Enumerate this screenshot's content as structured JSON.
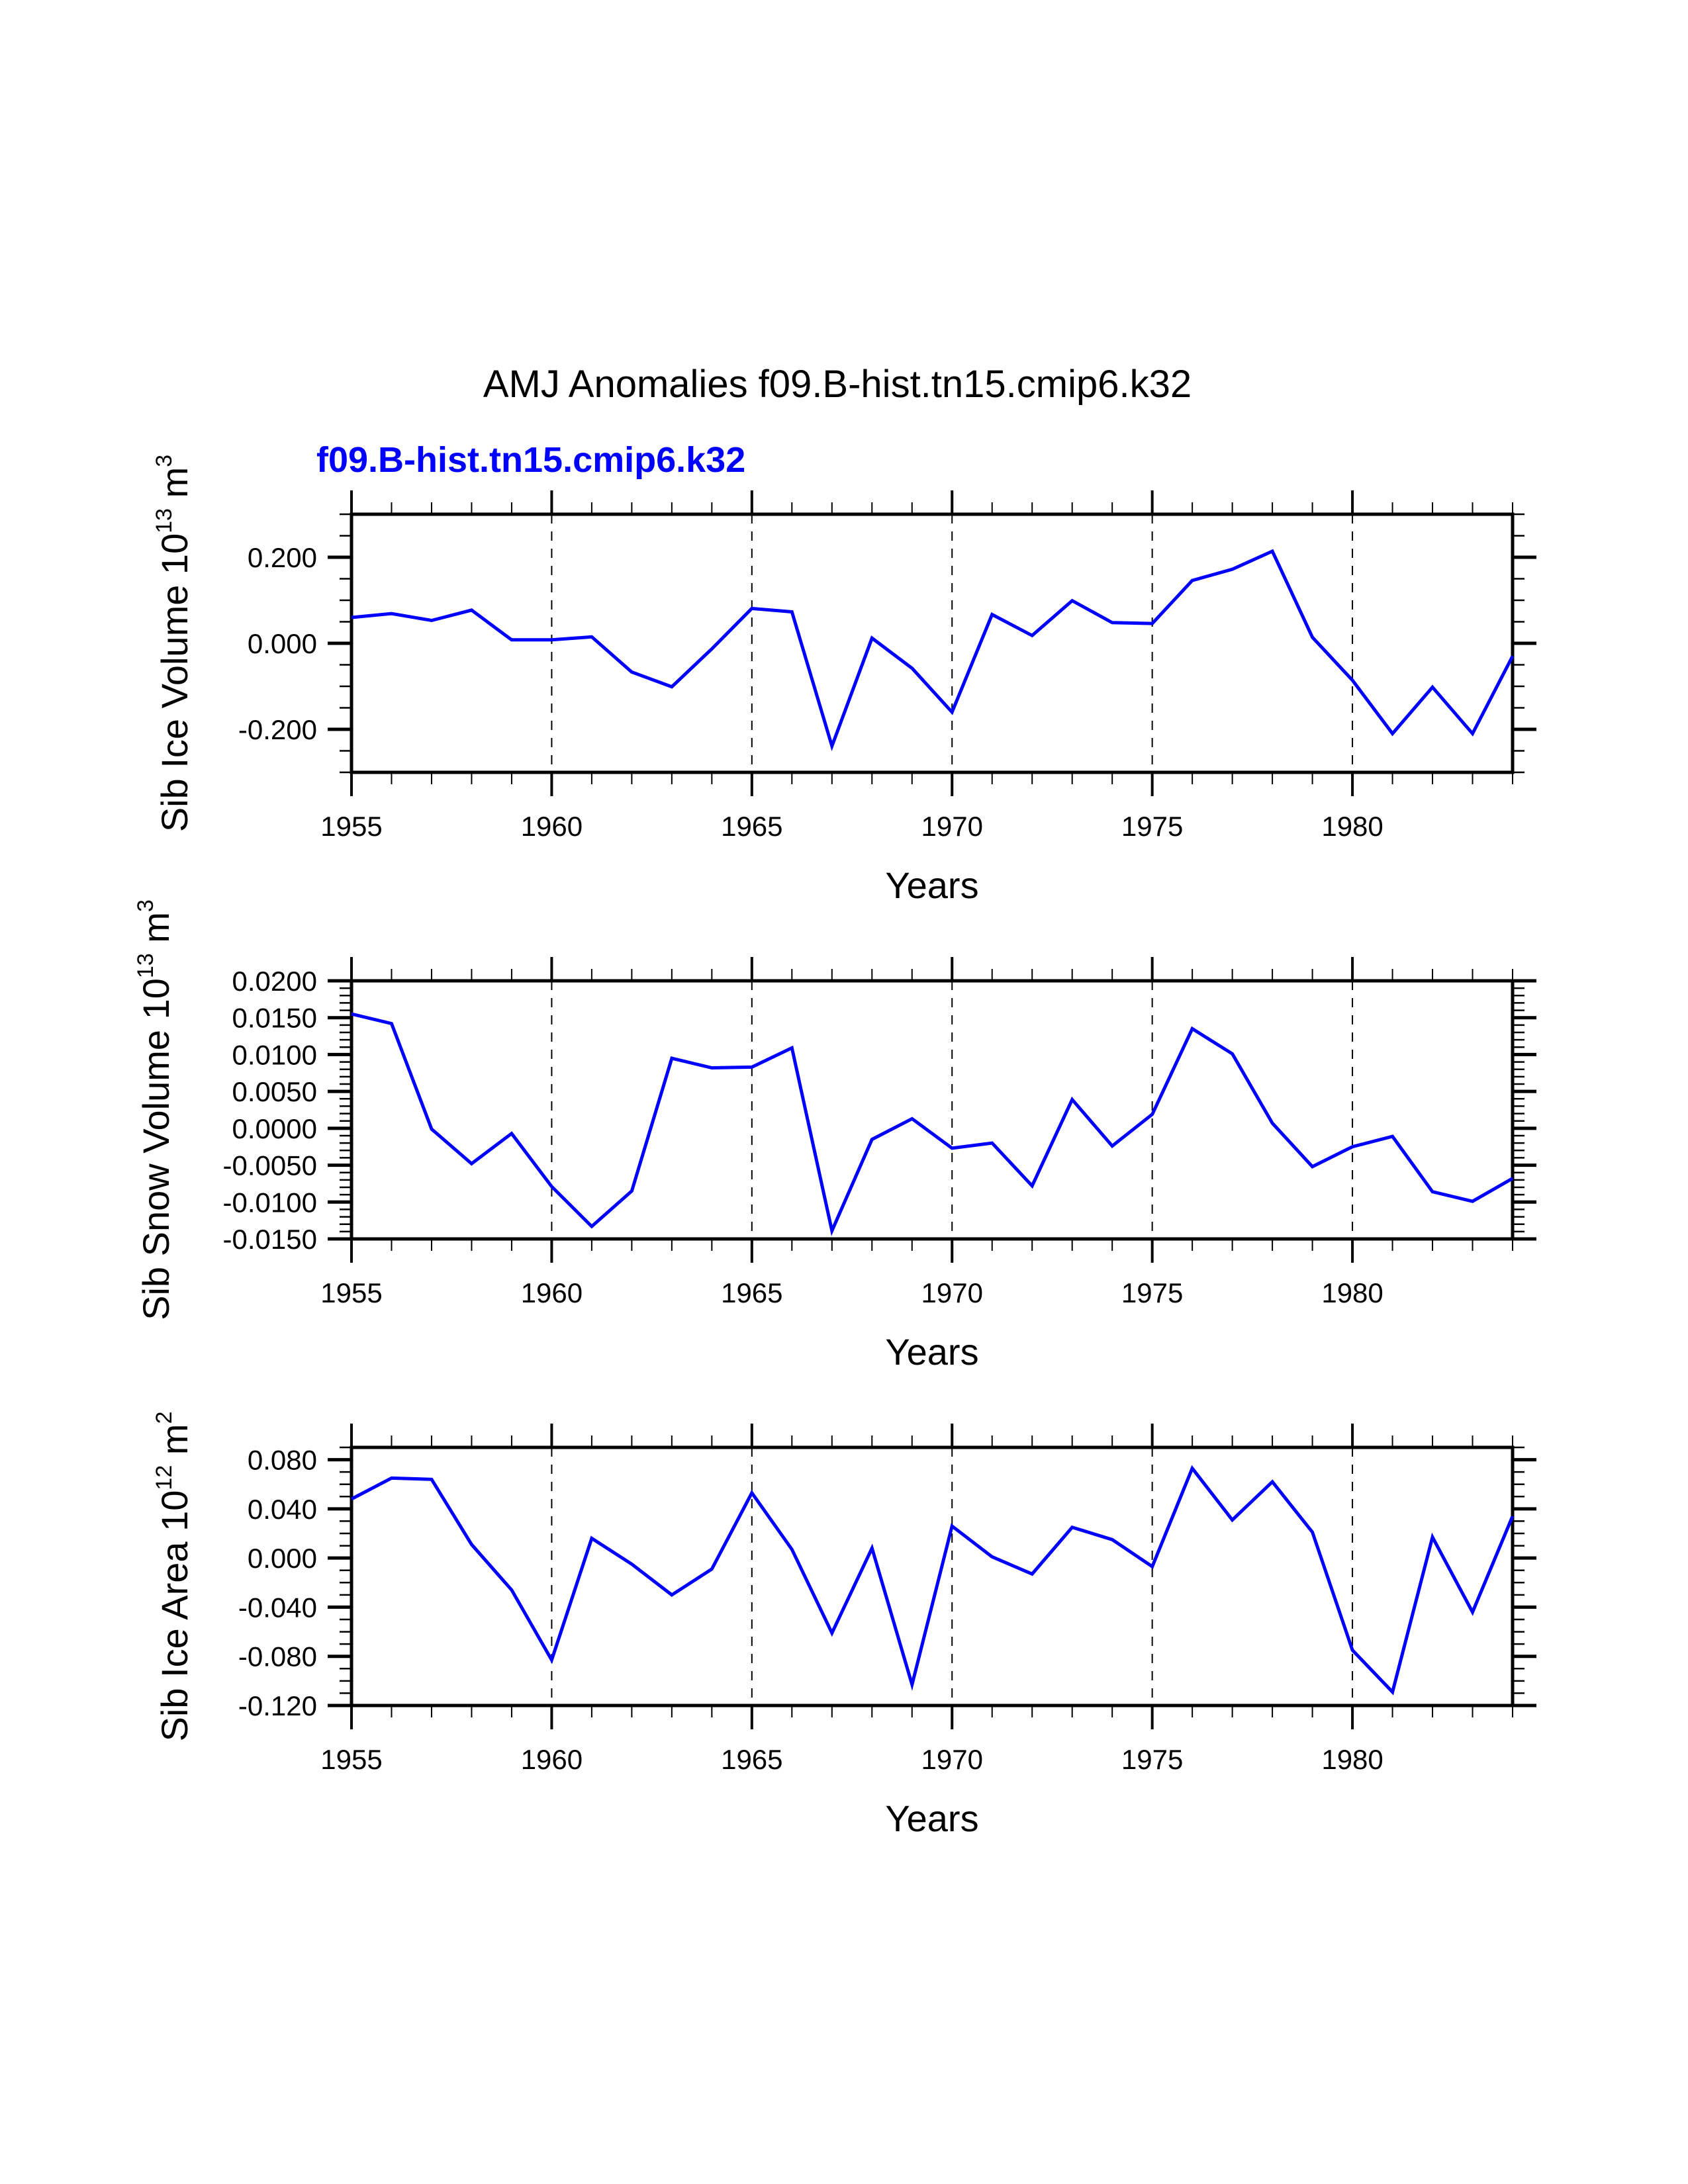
{
  "chart_data": {
    "title": "AMJ Anomalies f09.B-hist.tn15.cmip6.k32",
    "subtitle": "f09.B-hist.tn15.cmip6.k32",
    "series_color": "#0000ff",
    "grid_line_color": "#000000",
    "panels": [
      {
        "type": "line",
        "ylabel": {
          "text": "Sib Ice Volume 10",
          "exponent": "13",
          "unit": "m",
          "unit_exponent": "3"
        },
        "xlabel": "Years",
        "x": [
          1955,
          1956,
          1957,
          1958,
          1959,
          1960,
          1961,
          1962,
          1963,
          1964,
          1965,
          1966,
          1967,
          1968,
          1969,
          1970,
          1971,
          1972,
          1973,
          1974,
          1975,
          1976,
          1977,
          1978,
          1979,
          1980,
          1981,
          1982,
          1983,
          1984
        ],
        "series": [
          {
            "name": "f09.B-hist.tn15.cmip6.k32",
            "values": [
              0.06,
              0.069,
              0.053,
              0.077,
              0.008,
              0.008,
              0.015,
              -0.067,
              -0.101,
              -0.013,
              0.081,
              0.073,
              -0.239,
              0.012,
              -0.058,
              -0.16,
              0.067,
              0.018,
              0.099,
              0.048,
              0.046,
              0.146,
              0.172,
              0.214,
              0.014,
              -0.086,
              -0.21,
              -0.102,
              -0.21,
              -0.03
            ]
          }
        ],
        "xlim": [
          1955,
          1984
        ],
        "ylim": [
          -0.3,
          0.3
        ],
        "x_ticks": [
          1955,
          1960,
          1965,
          1970,
          1975,
          1980
        ],
        "x_tick_labels": [
          "1955",
          "1960",
          "1965",
          "1970",
          "1975",
          "1980"
        ],
        "x_minor_step": 1,
        "y_ticks": [
          0.2,
          0.0,
          -0.2
        ],
        "y_tick_labels": [
          "0.200",
          "0.000",
          "-0.200"
        ],
        "y_minor_step": 0.05,
        "vertical_reference_lines": [
          1960,
          1965,
          1970,
          1975,
          1980
        ],
        "show_subtitle": true
      },
      {
        "type": "line",
        "ylabel": {
          "text": "Sib Snow Volume 10",
          "exponent": "13",
          "unit": "m",
          "unit_exponent": "3"
        },
        "xlabel": "Years",
        "x": [
          1955,
          1956,
          1957,
          1958,
          1959,
          1960,
          1961,
          1962,
          1963,
          1964,
          1965,
          1966,
          1967,
          1968,
          1969,
          1970,
          1971,
          1972,
          1973,
          1974,
          1975,
          1976,
          1977,
          1978,
          1979,
          1980,
          1981,
          1982,
          1983,
          1984
        ],
        "series": [
          {
            "name": "f09.B-hist.tn15.cmip6.k32",
            "values": [
              0.0155,
              0.0142,
              -0.0001,
              -0.0048,
              -0.0007,
              -0.0079,
              -0.0133,
              -0.0085,
              0.0095,
              0.0082,
              0.0083,
              0.0109,
              -0.0139,
              -0.0015,
              0.0013,
              -0.0027,
              -0.002,
              -0.0078,
              0.0039,
              -0.0024,
              0.0019,
              0.0135,
              0.0101,
              0.0007,
              -0.0052,
              -0.0025,
              -0.0011,
              -0.0086,
              -0.0099,
              -0.0068
            ]
          }
        ],
        "xlim": [
          1955,
          1984
        ],
        "ylim": [
          -0.015,
          0.02
        ],
        "x_ticks": [
          1955,
          1960,
          1965,
          1970,
          1975,
          1980
        ],
        "x_tick_labels": [
          "1955",
          "1960",
          "1965",
          "1970",
          "1975",
          "1980"
        ],
        "x_minor_step": 1,
        "y_ticks": [
          0.02,
          0.015,
          0.01,
          0.005,
          0.0,
          -0.005,
          -0.01,
          -0.015
        ],
        "y_tick_labels": [
          "0.0200",
          "0.0150",
          "0.0100",
          "0.0050",
          "0.0000",
          "-0.0050",
          "-0.0100",
          "-0.0150"
        ],
        "y_minor_step": 0.001,
        "vertical_reference_lines": [
          1960,
          1965,
          1970,
          1975,
          1980
        ],
        "show_subtitle": false
      },
      {
        "type": "line",
        "ylabel": {
          "text": "Sib Ice Area 10",
          "exponent": "12",
          "unit": "m",
          "unit_exponent": "2"
        },
        "xlabel": "Years",
        "x": [
          1955,
          1956,
          1957,
          1958,
          1959,
          1960,
          1961,
          1962,
          1963,
          1964,
          1965,
          1966,
          1967,
          1968,
          1969,
          1970,
          1971,
          1972,
          1973,
          1974,
          1975,
          1976,
          1977,
          1978,
          1979,
          1980,
          1981,
          1982,
          1983,
          1984
        ],
        "series": [
          {
            "name": "f09.B-hist.tn15.cmip6.k32",
            "values": [
              0.048,
              0.065,
              0.064,
              0.011,
              -0.026,
              -0.083,
              0.016,
              -0.005,
              -0.03,
              -0.009,
              0.053,
              0.007,
              -0.061,
              0.008,
              -0.103,
              0.026,
              0.001,
              -0.013,
              0.025,
              0.015,
              -0.007,
              0.073,
              0.031,
              0.062,
              0.021,
              -0.075,
              -0.109,
              0.017,
              -0.044,
              0.034
            ]
          }
        ],
        "xlim": [
          1955,
          1984
        ],
        "ylim": [
          -0.12,
          0.09
        ],
        "x_ticks": [
          1955,
          1960,
          1965,
          1970,
          1975,
          1980
        ],
        "x_tick_labels": [
          "1955",
          "1960",
          "1965",
          "1970",
          "1975",
          "1980"
        ],
        "x_minor_step": 1,
        "y_ticks": [
          0.08,
          0.04,
          0.0,
          -0.04,
          -0.08,
          -0.12
        ],
        "y_tick_labels": [
          "0.080",
          "0.040",
          "0.000",
          "-0.040",
          "-0.080",
          "-0.120"
        ],
        "y_minor_step": 0.01,
        "vertical_reference_lines": [
          1960,
          1965,
          1970,
          1975,
          1980
        ],
        "show_subtitle": false
      }
    ]
  }
}
